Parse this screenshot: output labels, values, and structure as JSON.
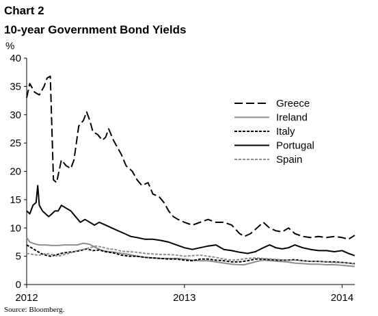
{
  "header": {
    "chart_number": "Chart 2",
    "title": "10-year Government Bond Yields",
    "unit": "%"
  },
  "source": "Source: Bloomberg.",
  "chart_data": {
    "type": "line",
    "title": "10-year Government Bond Yields",
    "ylabel": "%",
    "xlabel": "",
    "ylim": [
      0,
      40
    ],
    "xlim": [
      2012.0,
      2014.08
    ],
    "yticks": [
      0,
      5,
      10,
      15,
      20,
      25,
      30,
      35,
      40
    ],
    "xticks": [
      {
        "value": 2012,
        "label": "2012"
      },
      {
        "value": 2013,
        "label": "2013"
      },
      {
        "value": 2014,
        "label": "2014"
      }
    ],
    "grid": false,
    "legend_position": "top-right",
    "series": [
      {
        "name": "Greece",
        "color": "#000000",
        "dash": "long-dash",
        "points": [
          [
            2012.0,
            33
          ],
          [
            2012.02,
            35.5
          ],
          [
            2012.05,
            34
          ],
          [
            2012.08,
            33.5
          ],
          [
            2012.11,
            35
          ],
          [
            2012.13,
            36.5
          ],
          [
            2012.15,
            36.8
          ],
          [
            2012.17,
            18.5
          ],
          [
            2012.19,
            18
          ],
          [
            2012.22,
            22
          ],
          [
            2012.25,
            21
          ],
          [
            2012.28,
            20.5
          ],
          [
            2012.3,
            22
          ],
          [
            2012.33,
            28
          ],
          [
            2012.36,
            29
          ],
          [
            2012.38,
            30.5
          ],
          [
            2012.4,
            29
          ],
          [
            2012.42,
            27
          ],
          [
            2012.45,
            26.5
          ],
          [
            2012.48,
            25.5
          ],
          [
            2012.5,
            26
          ],
          [
            2012.52,
            27.5
          ],
          [
            2012.55,
            25.5
          ],
          [
            2012.58,
            24
          ],
          [
            2012.6,
            23
          ],
          [
            2012.63,
            21
          ],
          [
            2012.67,
            20
          ],
          [
            2012.7,
            18.5
          ],
          [
            2012.73,
            17.5
          ],
          [
            2012.77,
            18
          ],
          [
            2012.8,
            16
          ],
          [
            2012.84,
            15.5
          ],
          [
            2012.87,
            14.5
          ],
          [
            2012.9,
            13
          ],
          [
            2012.93,
            12
          ],
          [
            2012.96,
            11.5
          ],
          [
            2013.0,
            11
          ],
          [
            2013.05,
            10.5
          ],
          [
            2013.1,
            11
          ],
          [
            2013.15,
            11.5
          ],
          [
            2013.2,
            11
          ],
          [
            2013.25,
            11
          ],
          [
            2013.3,
            10.5
          ],
          [
            2013.35,
            9
          ],
          [
            2013.38,
            8.5
          ],
          [
            2013.42,
            9
          ],
          [
            2013.46,
            10
          ],
          [
            2013.5,
            11
          ],
          [
            2013.54,
            10
          ],
          [
            2013.58,
            9.5
          ],
          [
            2013.62,
            9.3
          ],
          [
            2013.66,
            10
          ],
          [
            2013.7,
            9
          ],
          [
            2013.75,
            8.5
          ],
          [
            2013.8,
            8.3
          ],
          [
            2013.85,
            8.5
          ],
          [
            2013.9,
            8.3
          ],
          [
            2013.95,
            8.5
          ],
          [
            2014.0,
            8.3
          ],
          [
            2014.04,
            8
          ],
          [
            2014.08,
            8.7
          ]
        ]
      },
      {
        "name": "Ireland",
        "color": "#8c8c8c",
        "dash": "solid",
        "points": [
          [
            2012.0,
            8.3
          ],
          [
            2012.02,
            7.5
          ],
          [
            2012.05,
            7.2
          ],
          [
            2012.08,
            7.0
          ],
          [
            2012.12,
            7.0
          ],
          [
            2012.16,
            6.9
          ],
          [
            2012.2,
            6.9
          ],
          [
            2012.24,
            7.0
          ],
          [
            2012.28,
            7.0
          ],
          [
            2012.32,
            7.0
          ],
          [
            2012.36,
            7.3
          ],
          [
            2012.4,
            7.1
          ],
          [
            2012.44,
            6.5
          ],
          [
            2012.48,
            6.0
          ],
          [
            2012.52,
            5.8
          ],
          [
            2012.56,
            5.7
          ],
          [
            2012.6,
            5.5
          ],
          [
            2012.65,
            5.3
          ],
          [
            2012.7,
            5.0
          ],
          [
            2012.75,
            4.8
          ],
          [
            2012.8,
            4.7
          ],
          [
            2012.85,
            4.6
          ],
          [
            2012.9,
            4.6
          ],
          [
            2012.95,
            4.6
          ],
          [
            2013.0,
            4.5
          ],
          [
            2013.05,
            4.3
          ],
          [
            2013.1,
            4.2
          ],
          [
            2013.15,
            4.2
          ],
          [
            2013.2,
            4.0
          ],
          [
            2013.25,
            3.8
          ],
          [
            2013.3,
            3.6
          ],
          [
            2013.35,
            3.5
          ],
          [
            2013.38,
            3.5
          ],
          [
            2013.42,
            3.8
          ],
          [
            2013.46,
            4.1
          ],
          [
            2013.5,
            4.3
          ],
          [
            2013.55,
            4.2
          ],
          [
            2013.6,
            4.1
          ],
          [
            2013.65,
            4.0
          ],
          [
            2013.7,
            3.8
          ],
          [
            2013.75,
            3.7
          ],
          [
            2013.8,
            3.6
          ],
          [
            2013.85,
            3.6
          ],
          [
            2013.9,
            3.5
          ],
          [
            2013.95,
            3.5
          ],
          [
            2014.0,
            3.4
          ],
          [
            2014.04,
            3.3
          ],
          [
            2014.08,
            3.2
          ]
        ]
      },
      {
        "name": "Italy",
        "color": "#000000",
        "dash": "short-dash",
        "points": [
          [
            2012.0,
            7.0
          ],
          [
            2012.03,
            6.5
          ],
          [
            2012.06,
            6.0
          ],
          [
            2012.09,
            5.5
          ],
          [
            2012.12,
            5.2
          ],
          [
            2012.15,
            5.0
          ],
          [
            2012.18,
            5.2
          ],
          [
            2012.22,
            5.5
          ],
          [
            2012.26,
            5.7
          ],
          [
            2012.3,
            5.8
          ],
          [
            2012.34,
            6.0
          ],
          [
            2012.38,
            6.3
          ],
          [
            2012.42,
            6.0
          ],
          [
            2012.46,
            6.1
          ],
          [
            2012.5,
            5.8
          ],
          [
            2012.55,
            5.6
          ],
          [
            2012.6,
            5.2
          ],
          [
            2012.65,
            5.0
          ],
          [
            2012.7,
            5.0
          ],
          [
            2012.75,
            4.8
          ],
          [
            2012.8,
            4.7
          ],
          [
            2012.85,
            4.6
          ],
          [
            2012.9,
            4.5
          ],
          [
            2012.95,
            4.5
          ],
          [
            2013.0,
            4.3
          ],
          [
            2013.05,
            4.2
          ],
          [
            2013.1,
            4.5
          ],
          [
            2013.15,
            4.5
          ],
          [
            2013.2,
            4.3
          ],
          [
            2013.25,
            4.2
          ],
          [
            2013.3,
            4.0
          ],
          [
            2013.35,
            4.0
          ],
          [
            2013.4,
            4.2
          ],
          [
            2013.45,
            4.5
          ],
          [
            2013.5,
            4.5
          ],
          [
            2013.55,
            4.4
          ],
          [
            2013.6,
            4.3
          ],
          [
            2013.65,
            4.3
          ],
          [
            2013.7,
            4.4
          ],
          [
            2013.75,
            4.2
          ],
          [
            2013.8,
            4.1
          ],
          [
            2013.85,
            4.1
          ],
          [
            2013.9,
            4.0
          ],
          [
            2013.95,
            4.0
          ],
          [
            2014.0,
            3.9
          ],
          [
            2014.04,
            3.8
          ],
          [
            2014.08,
            3.7
          ]
        ]
      },
      {
        "name": "Portugal",
        "color": "#000000",
        "dash": "solid",
        "points": [
          [
            2012.0,
            13
          ],
          [
            2012.02,
            12.5
          ],
          [
            2012.04,
            14
          ],
          [
            2012.06,
            14.5
          ],
          [
            2012.07,
            17.5
          ],
          [
            2012.08,
            14
          ],
          [
            2012.1,
            13
          ],
          [
            2012.12,
            12.5
          ],
          [
            2012.14,
            12
          ],
          [
            2012.16,
            12.5
          ],
          [
            2012.18,
            13
          ],
          [
            2012.2,
            13
          ],
          [
            2012.22,
            14
          ],
          [
            2012.25,
            13.5
          ],
          [
            2012.28,
            13
          ],
          [
            2012.31,
            12
          ],
          [
            2012.34,
            11
          ],
          [
            2012.37,
            11.5
          ],
          [
            2012.4,
            11
          ],
          [
            2012.43,
            10.5
          ],
          [
            2012.46,
            11
          ],
          [
            2012.5,
            10.5
          ],
          [
            2012.54,
            10
          ],
          [
            2012.58,
            9.5
          ],
          [
            2012.62,
            9
          ],
          [
            2012.66,
            8.5
          ],
          [
            2012.7,
            8.3
          ],
          [
            2012.75,
            8
          ],
          [
            2012.8,
            8
          ],
          [
            2012.85,
            7.8
          ],
          [
            2012.9,
            7.5
          ],
          [
            2012.95,
            7
          ],
          [
            2013.0,
            6.5
          ],
          [
            2013.05,
            6.2
          ],
          [
            2013.1,
            6.5
          ],
          [
            2013.15,
            6.8
          ],
          [
            2013.2,
            7
          ],
          [
            2013.25,
            6.2
          ],
          [
            2013.3,
            6
          ],
          [
            2013.35,
            5.7
          ],
          [
            2013.4,
            5.5
          ],
          [
            2013.45,
            5.8
          ],
          [
            2013.5,
            6.5
          ],
          [
            2013.54,
            7.0
          ],
          [
            2013.58,
            6.5
          ],
          [
            2013.62,
            6.3
          ],
          [
            2013.66,
            6.5
          ],
          [
            2013.7,
            7
          ],
          [
            2013.75,
            6.5
          ],
          [
            2013.8,
            6.2
          ],
          [
            2013.85,
            6
          ],
          [
            2013.9,
            6
          ],
          [
            2013.95,
            5.8
          ],
          [
            2014.0,
            6
          ],
          [
            2014.04,
            5.5
          ],
          [
            2014.08,
            5.1
          ]
        ]
      },
      {
        "name": "Spain",
        "color": "#8c8c8c",
        "dash": "short-dash",
        "points": [
          [
            2012.0,
            5.5
          ],
          [
            2012.04,
            5.3
          ],
          [
            2012.08,
            5.2
          ],
          [
            2012.12,
            5.5
          ],
          [
            2012.16,
            5.3
          ],
          [
            2012.2,
            5.0
          ],
          [
            2012.24,
            5.3
          ],
          [
            2012.28,
            5.6
          ],
          [
            2012.32,
            6.0
          ],
          [
            2012.36,
            6.2
          ],
          [
            2012.4,
            6.5
          ],
          [
            2012.44,
            6.8
          ],
          [
            2012.48,
            6.6
          ],
          [
            2012.52,
            6.3
          ],
          [
            2012.56,
            6.2
          ],
          [
            2012.6,
            5.9
          ],
          [
            2012.65,
            5.8
          ],
          [
            2012.7,
            5.7
          ],
          [
            2012.75,
            5.5
          ],
          [
            2012.8,
            5.4
          ],
          [
            2012.85,
            5.3
          ],
          [
            2012.9,
            5.3
          ],
          [
            2012.95,
            5.2
          ],
          [
            2013.0,
            5.0
          ],
          [
            2013.05,
            5.1
          ],
          [
            2013.1,
            5.2
          ],
          [
            2013.15,
            5.0
          ],
          [
            2013.2,
            4.8
          ],
          [
            2013.25,
            4.5
          ],
          [
            2013.3,
            4.3
          ],
          [
            2013.35,
            4.4
          ],
          [
            2013.4,
            4.6
          ],
          [
            2013.45,
            4.7
          ],
          [
            2013.5,
            4.6
          ],
          [
            2013.55,
            4.5
          ],
          [
            2013.6,
            4.4
          ],
          [
            2013.65,
            4.3
          ],
          [
            2013.7,
            4.3
          ],
          [
            2013.75,
            4.2
          ],
          [
            2013.8,
            4.1
          ],
          [
            2013.85,
            4.1
          ],
          [
            2013.9,
            4.0
          ],
          [
            2013.95,
            3.9
          ],
          [
            2014.0,
            3.9
          ],
          [
            2014.04,
            3.8
          ],
          [
            2014.08,
            3.6
          ]
        ]
      }
    ]
  }
}
